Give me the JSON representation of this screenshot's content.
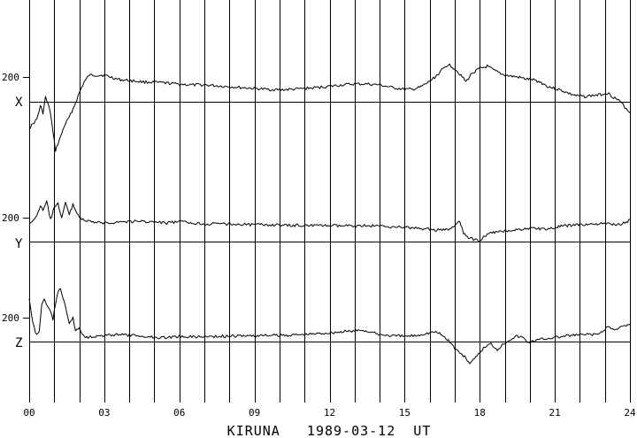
{
  "chart_data": {
    "type": "line",
    "title": "KIRUNA   1989-03-12  UT",
    "xlabel": "",
    "ylabel": "",
    "xlim": [
      0,
      24
    ],
    "grid": true,
    "x_tick_labels": [
      "00",
      "03",
      "06",
      "09",
      "12",
      "15",
      "18",
      "21",
      "24"
    ],
    "x_tick_values": [
      0,
      3,
      6,
      9,
      12,
      15,
      18,
      21,
      24
    ],
    "line_color": "#000000",
    "panels": [
      {
        "channel": "X",
        "scale_label": "200",
        "points": [
          [
            0.0,
            -60
          ],
          [
            0.15,
            -50
          ],
          [
            0.3,
            -40
          ],
          [
            0.45,
            -10
          ],
          [
            0.55,
            -25
          ],
          [
            0.65,
            10
          ],
          [
            0.75,
            -5
          ],
          [
            0.85,
            -25
          ],
          [
            0.95,
            -70
          ],
          [
            1.05,
            -110
          ],
          [
            1.15,
            -95
          ],
          [
            1.25,
            -80
          ],
          [
            1.4,
            -55
          ],
          [
            1.6,
            -35
          ],
          [
            1.8,
            -10
          ],
          [
            2.0,
            20
          ],
          [
            2.2,
            45
          ],
          [
            2.4,
            60
          ],
          [
            2.7,
            60
          ],
          [
            3.0,
            60
          ],
          [
            3.3,
            55
          ],
          [
            3.6,
            50
          ],
          [
            4.0,
            48
          ],
          [
            4.5,
            45
          ],
          [
            5.0,
            44
          ],
          [
            5.5,
            42
          ],
          [
            6.0,
            40
          ],
          [
            6.5,
            38
          ],
          [
            7.0,
            38
          ],
          [
            7.5,
            36
          ],
          [
            8.0,
            34
          ],
          [
            8.5,
            32
          ],
          [
            9.0,
            30
          ],
          [
            9.5,
            28
          ],
          [
            10.0,
            27
          ],
          [
            10.5,
            28
          ],
          [
            11.0,
            30
          ],
          [
            11.5,
            32
          ],
          [
            12.0,
            35
          ],
          [
            12.5,
            38
          ],
          [
            13.0,
            40
          ],
          [
            13.5,
            40
          ],
          [
            14.0,
            38
          ],
          [
            14.5,
            32
          ],
          [
            15.0,
            28
          ],
          [
            15.3,
            28
          ],
          [
            15.6,
            32
          ],
          [
            15.9,
            42
          ],
          [
            16.2,
            55
          ],
          [
            16.5,
            72
          ],
          [
            16.75,
            85
          ],
          [
            17.0,
            75
          ],
          [
            17.25,
            60
          ],
          [
            17.45,
            45
          ],
          [
            17.7,
            65
          ],
          [
            18.0,
            75
          ],
          [
            18.3,
            80
          ],
          [
            18.6,
            70
          ],
          [
            18.9,
            62
          ],
          [
            19.2,
            58
          ],
          [
            19.5,
            56
          ],
          [
            19.8,
            52
          ],
          [
            20.1,
            50
          ],
          [
            20.4,
            45
          ],
          [
            20.7,
            35
          ],
          [
            21.0,
            30
          ],
          [
            21.3,
            25
          ],
          [
            21.6,
            18
          ],
          [
            21.9,
            13
          ],
          [
            22.2,
            12
          ],
          [
            22.5,
            14
          ],
          [
            22.8,
            16
          ],
          [
            23.1,
            20
          ],
          [
            23.3,
            12
          ],
          [
            23.5,
            5
          ],
          [
            23.7,
            -5
          ],
          [
            23.85,
            -15
          ],
          [
            24.0,
            -25
          ]
        ]
      },
      {
        "channel": "Y",
        "scale_label": "200",
        "points": [
          [
            0.0,
            40
          ],
          [
            0.15,
            45
          ],
          [
            0.3,
            60
          ],
          [
            0.45,
            80
          ],
          [
            0.55,
            70
          ],
          [
            0.7,
            90
          ],
          [
            0.85,
            50
          ],
          [
            1.0,
            75
          ],
          [
            1.15,
            85
          ],
          [
            1.3,
            55
          ],
          [
            1.45,
            88
          ],
          [
            1.6,
            60
          ],
          [
            1.75,
            85
          ],
          [
            1.9,
            65
          ],
          [
            2.1,
            50
          ],
          [
            2.4,
            45
          ],
          [
            2.7,
            43
          ],
          [
            3.0,
            42
          ],
          [
            3.5,
            44
          ],
          [
            4.0,
            45
          ],
          [
            4.5,
            46
          ],
          [
            5.0,
            44
          ],
          [
            5.5,
            42
          ],
          [
            6.0,
            45
          ],
          [
            6.5,
            42
          ],
          [
            7.0,
            40
          ],
          [
            7.5,
            40
          ],
          [
            8.0,
            40
          ],
          [
            8.5,
            39
          ],
          [
            9.0,
            38
          ],
          [
            9.5,
            38
          ],
          [
            10.0,
            37
          ],
          [
            10.5,
            36
          ],
          [
            11.0,
            37
          ],
          [
            11.5,
            36
          ],
          [
            12.0,
            36
          ],
          [
            12.5,
            35
          ],
          [
            13.0,
            36
          ],
          [
            13.5,
            36
          ],
          [
            14.0,
            35
          ],
          [
            14.5,
            34
          ],
          [
            15.0,
            32
          ],
          [
            15.5,
            30
          ],
          [
            16.0,
            28
          ],
          [
            16.5,
            25
          ],
          [
            16.8,
            28
          ],
          [
            17.0,
            35
          ],
          [
            17.2,
            45
          ],
          [
            17.35,
            20
          ],
          [
            17.55,
            8
          ],
          [
            17.75,
            5
          ],
          [
            17.95,
            2
          ],
          [
            18.2,
            12
          ],
          [
            18.5,
            20
          ],
          [
            18.8,
            22
          ],
          [
            19.1,
            25
          ],
          [
            19.4,
            26
          ],
          [
            19.7,
            28
          ],
          [
            20.0,
            30
          ],
          [
            20.3,
            30
          ],
          [
            20.6,
            28
          ],
          [
            20.9,
            30
          ],
          [
            21.2,
            34
          ],
          [
            21.5,
            36
          ],
          [
            21.8,
            38
          ],
          [
            22.1,
            38
          ],
          [
            22.4,
            39
          ],
          [
            22.7,
            40
          ],
          [
            23.0,
            40
          ],
          [
            23.3,
            39
          ],
          [
            23.6,
            40
          ],
          [
            23.85,
            43
          ],
          [
            24.0,
            50
          ]
        ]
      },
      {
        "channel": "Z",
        "scale_label": "200",
        "points": [
          [
            0.0,
            100
          ],
          [
            0.1,
            60
          ],
          [
            0.2,
            30
          ],
          [
            0.3,
            15
          ],
          [
            0.4,
            25
          ],
          [
            0.5,
            80
          ],
          [
            0.6,
            95
          ],
          [
            0.7,
            85
          ],
          [
            0.85,
            70
          ],
          [
            0.95,
            50
          ],
          [
            1.05,
            85
          ],
          [
            1.15,
            110
          ],
          [
            1.25,
            120
          ],
          [
            1.35,
            100
          ],
          [
            1.5,
            65
          ],
          [
            1.6,
            40
          ],
          [
            1.75,
            55
          ],
          [
            1.85,
            25
          ],
          [
            2.0,
            30
          ],
          [
            2.15,
            15
          ],
          [
            2.3,
            10
          ],
          [
            2.6,
            12
          ],
          [
            3.0,
            13
          ],
          [
            3.5,
            16
          ],
          [
            4.0,
            14
          ],
          [
            4.5,
            12
          ],
          [
            5.0,
            10
          ],
          [
            5.5,
            9
          ],
          [
            6.0,
            12
          ],
          [
            6.5,
            11
          ],
          [
            7.0,
            11
          ],
          [
            7.5,
            12
          ],
          [
            8.0,
            12
          ],
          [
            8.5,
            13
          ],
          [
            9.0,
            13
          ],
          [
            9.5,
            14
          ],
          [
            10.0,
            14
          ],
          [
            10.5,
            15
          ],
          [
            11.0,
            16
          ],
          [
            11.5,
            18
          ],
          [
            12.0,
            20
          ],
          [
            12.5,
            22
          ],
          [
            13.0,
            24
          ],
          [
            13.3,
            26
          ],
          [
            13.6,
            22
          ],
          [
            14.0,
            16
          ],
          [
            14.5,
            13
          ],
          [
            15.0,
            12
          ],
          [
            15.5,
            14
          ],
          [
            15.8,
            18
          ],
          [
            16.0,
            20
          ],
          [
            16.2,
            22
          ],
          [
            16.4,
            18
          ],
          [
            16.6,
            10
          ],
          [
            16.8,
            0
          ],
          [
            17.0,
            -15
          ],
          [
            17.2,
            -25
          ],
          [
            17.4,
            -35
          ],
          [
            17.6,
            -48
          ],
          [
            17.8,
            -40
          ],
          [
            18.0,
            -25
          ],
          [
            18.2,
            -12
          ],
          [
            18.45,
            -5
          ],
          [
            18.7,
            -18
          ],
          [
            18.95,
            -5
          ],
          [
            19.2,
            5
          ],
          [
            19.45,
            12
          ],
          [
            19.7,
            10
          ],
          [
            19.95,
            -2
          ],
          [
            20.2,
            2
          ],
          [
            20.5,
            6
          ],
          [
            20.8,
            8
          ],
          [
            21.1,
            10
          ],
          [
            21.4,
            12
          ],
          [
            21.7,
            14
          ],
          [
            22.0,
            15
          ],
          [
            22.3,
            16
          ],
          [
            22.6,
            16
          ],
          [
            22.9,
            20
          ],
          [
            23.1,
            35
          ],
          [
            23.3,
            28
          ],
          [
            23.5,
            30
          ],
          [
            23.7,
            34
          ],
          [
            23.85,
            35
          ],
          [
            24.0,
            38
          ]
        ]
      }
    ]
  }
}
